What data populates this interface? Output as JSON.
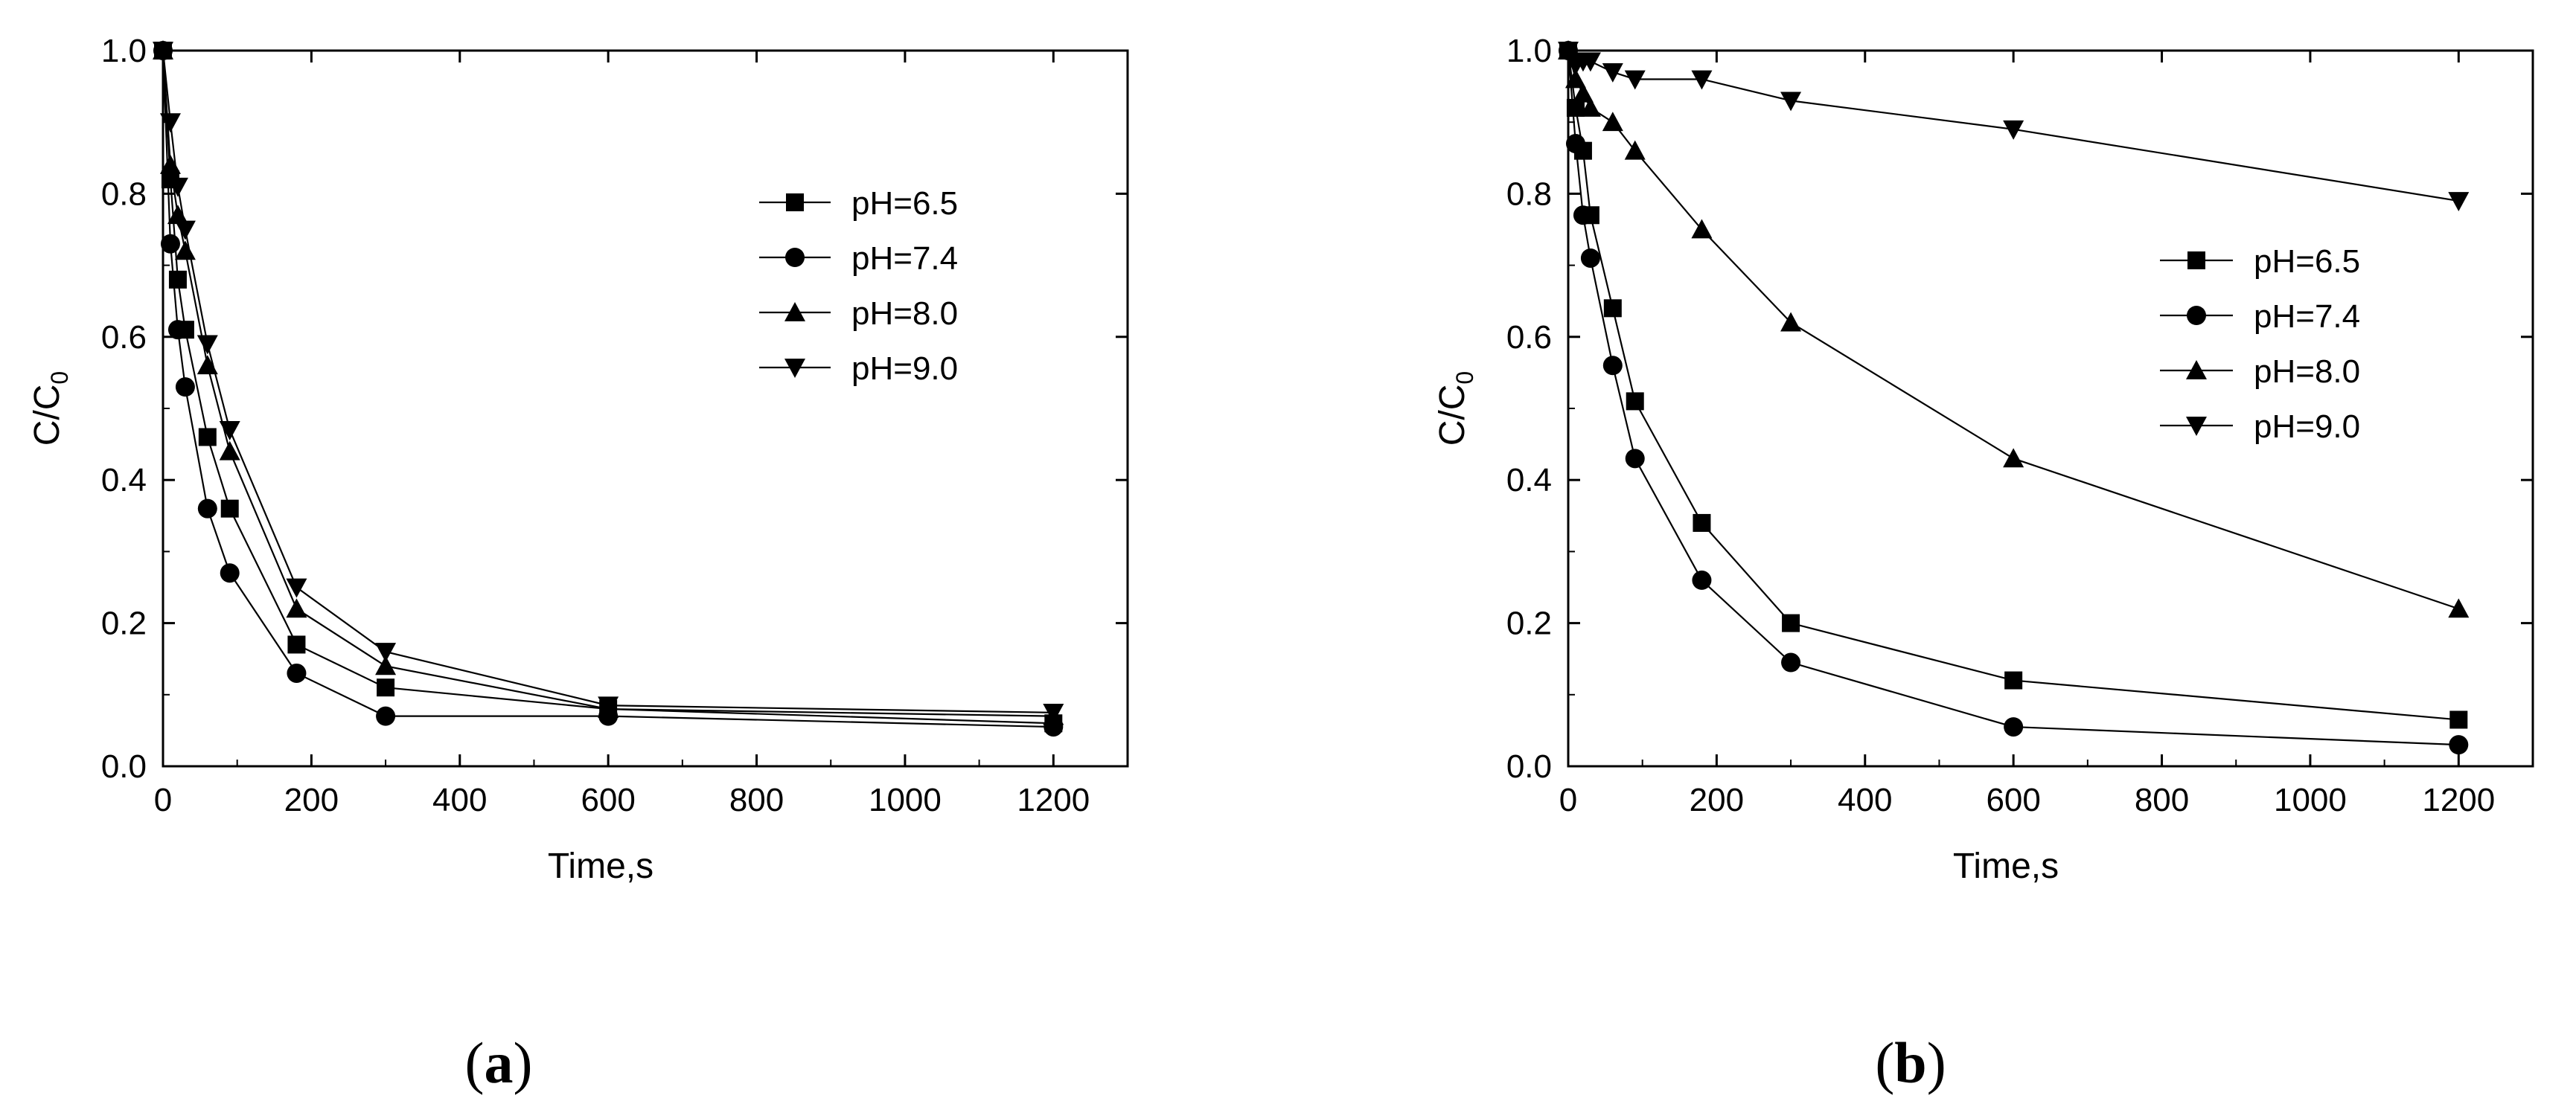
{
  "chart_data": [
    {
      "type": "line",
      "panel_label": "a",
      "xlabel": "Time,s",
      "ylabel": "C/C",
      "ylabel_sub": "0",
      "xlim": [
        0,
        1300
      ],
      "ylim": [
        0,
        1.0
      ],
      "xticks": [
        "0",
        "200",
        "400",
        "600",
        "800",
        "1000",
        "1200"
      ],
      "yticks": [
        "0.0",
        "0.2",
        "0.4",
        "0.6",
        "0.8",
        "1.0"
      ],
      "legend_position": "upper-right",
      "grid": false,
      "series": [
        {
          "name": "pH=6.5",
          "marker": "square",
          "x": [
            0,
            10,
            20,
            30,
            60,
            90,
            180,
            300,
            600,
            1200
          ],
          "y": [
            1.0,
            0.82,
            0.68,
            0.61,
            0.46,
            0.36,
            0.17,
            0.11,
            0.08,
            0.06
          ]
        },
        {
          "name": "pH=7.4",
          "marker": "circle",
          "x": [
            0,
            10,
            20,
            30,
            60,
            90,
            180,
            300,
            600,
            1200
          ],
          "y": [
            1.0,
            0.73,
            0.61,
            0.53,
            0.36,
            0.27,
            0.13,
            0.07,
            0.07,
            0.055
          ]
        },
        {
          "name": "pH=8.0",
          "marker": "triangle-up",
          "x": [
            0,
            10,
            20,
            30,
            60,
            90,
            180,
            300,
            600,
            1200
          ],
          "y": [
            1.0,
            0.84,
            0.77,
            0.72,
            0.56,
            0.44,
            0.22,
            0.14,
            0.08,
            0.07
          ]
        },
        {
          "name": "pH=9.0",
          "marker": "triangle-down",
          "x": [
            0,
            10,
            20,
            30,
            60,
            90,
            180,
            300,
            600,
            1200
          ],
          "y": [
            1.0,
            0.9,
            0.81,
            0.75,
            0.59,
            0.47,
            0.25,
            0.16,
            0.085,
            0.075
          ]
        }
      ]
    },
    {
      "type": "line",
      "panel_label": "b",
      "xlabel": "Time,s",
      "ylabel": "C/C",
      "ylabel_sub": "0",
      "xlim": [
        0,
        1300
      ],
      "ylim": [
        0,
        1.0
      ],
      "xticks": [
        "0",
        "200",
        "400",
        "600",
        "800",
        "1000",
        "1200"
      ],
      "yticks": [
        "0.0",
        "0.2",
        "0.4",
        "0.6",
        "0.8",
        "1.0"
      ],
      "legend_position": "right",
      "grid": false,
      "series": [
        {
          "name": "pH=6.5",
          "marker": "square",
          "x": [
            0,
            10,
            20,
            30,
            60,
            90,
            180,
            300,
            600,
            1200
          ],
          "y": [
            1.0,
            0.92,
            0.86,
            0.77,
            0.64,
            0.51,
            0.34,
            0.2,
            0.12,
            0.065
          ]
        },
        {
          "name": "pH=7.4",
          "marker": "circle",
          "x": [
            0,
            10,
            20,
            30,
            60,
            90,
            180,
            300,
            600,
            1200
          ],
          "y": [
            1.0,
            0.87,
            0.77,
            0.71,
            0.56,
            0.43,
            0.26,
            0.145,
            0.055,
            0.03
          ]
        },
        {
          "name": "pH=8.0",
          "marker": "triangle-up",
          "x": [
            0,
            10,
            20,
            30,
            60,
            90,
            180,
            300,
            600,
            1200
          ],
          "y": [
            1.0,
            0.96,
            0.94,
            0.92,
            0.9,
            0.86,
            0.75,
            0.62,
            0.43,
            0.22
          ]
        },
        {
          "name": "pH=9.0",
          "marker": "triangle-down",
          "x": [
            0,
            10,
            20,
            30,
            60,
            90,
            180,
            300,
            600,
            1200
          ],
          "y": [
            1.0,
            0.98,
            0.985,
            0.985,
            0.97,
            0.96,
            0.96,
            0.93,
            0.89,
            0.79
          ]
        }
      ]
    }
  ]
}
